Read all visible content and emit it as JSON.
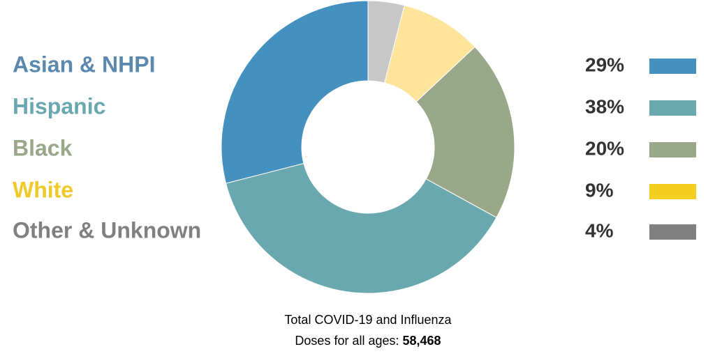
{
  "chart_data": {
    "type": "donut",
    "categories": [
      "Asian & NHPI",
      "Hispanic",
      "Black",
      "White",
      "Other & Unknown"
    ],
    "values": [
      29,
      38,
      20,
      9,
      4
    ],
    "value_labels": [
      "29%",
      "38%",
      "20%",
      "9%",
      "4%"
    ],
    "colors": [
      "#4490bf",
      "#6aa8b0",
      "#9aa88a",
      "#fee39b",
      "#c8c8c8"
    ],
    "legend_colors": [
      "#4490bf",
      "#6aa8b0",
      "#9aa88a",
      "#f5cf1f",
      "#808080"
    ],
    "label_colors": [
      "#5b88ad",
      "#6aa8b0",
      "#9aa88a",
      "#f0c929",
      "#808080"
    ],
    "caption": [
      "Total COVID-19 and Influenza",
      "Doses for all ages:"
    ],
    "total": {
      "value": 58468,
      "label": "58,468"
    }
  }
}
